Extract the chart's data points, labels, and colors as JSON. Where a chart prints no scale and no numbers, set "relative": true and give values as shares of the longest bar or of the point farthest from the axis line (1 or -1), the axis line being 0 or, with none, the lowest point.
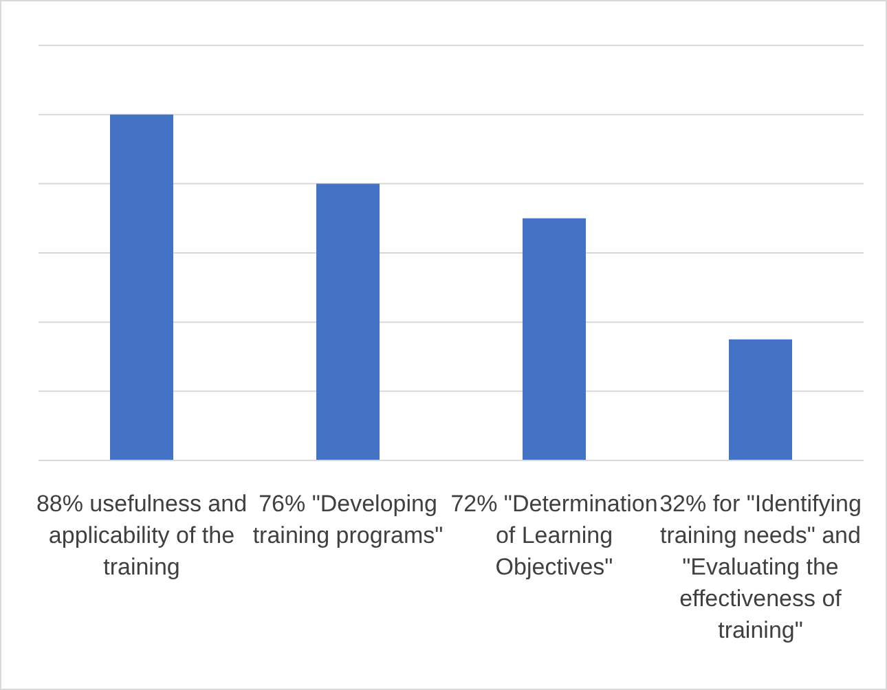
{
  "chart_data": {
    "type": "bar",
    "relative": true,
    "categories": [
      "88% usefulness and applicability of the training",
      "76% \"Developing training programs\"",
      "72% \"Determination of Learning Objectives\"",
      "32% for \"Identifying training needs\" and \"Evaluating the effectiveness of training\""
    ],
    "values": [
      1,
      0.8,
      0.7,
      0.35
    ],
    "color": "#4472c4",
    "grid": true
  }
}
